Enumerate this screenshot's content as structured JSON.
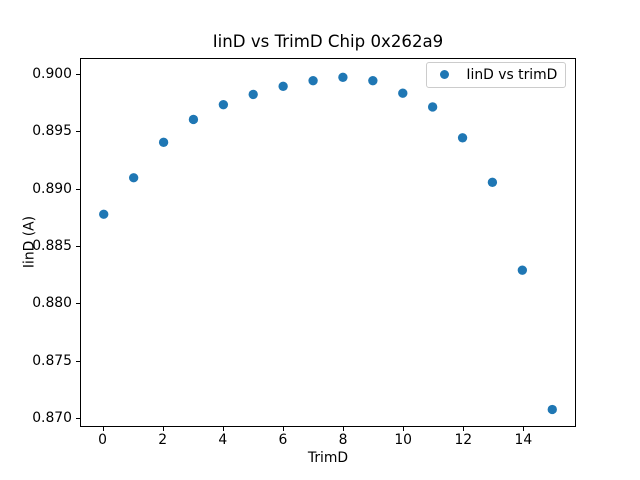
{
  "chart_data": {
    "type": "scatter",
    "title": "IinD vs TrimD Chip 0x262a9",
    "xlabel": "TrimD",
    "ylabel": "IinD (A)",
    "legend_entries": [
      "IinD vs trimD"
    ],
    "legend_position": "upper right",
    "marker_color": "#1f77b4",
    "marker_shape": "circle",
    "grid": false,
    "x": [
      0,
      1,
      2,
      3,
      4,
      5,
      6,
      7,
      8,
      9,
      10,
      11,
      12,
      13,
      14,
      15
    ],
    "y": [
      0.8878,
      0.891,
      0.8941,
      0.8961,
      0.8974,
      0.8983,
      0.899,
      0.8995,
      0.8998,
      0.8995,
      0.8984,
      0.8972,
      0.8945,
      0.8906,
      0.8829,
      0.8707
    ],
    "xlim": [
      -0.75,
      15.75
    ],
    "ylim": [
      0.8692,
      0.9014
    ],
    "xtick_labels": [
      "0",
      "2",
      "4",
      "6",
      "8",
      "10",
      "12",
      "14"
    ],
    "ytick_labels": [
      "0.870",
      "0.875",
      "0.880",
      "0.885",
      "0.890",
      "0.895",
      "0.900"
    ]
  }
}
